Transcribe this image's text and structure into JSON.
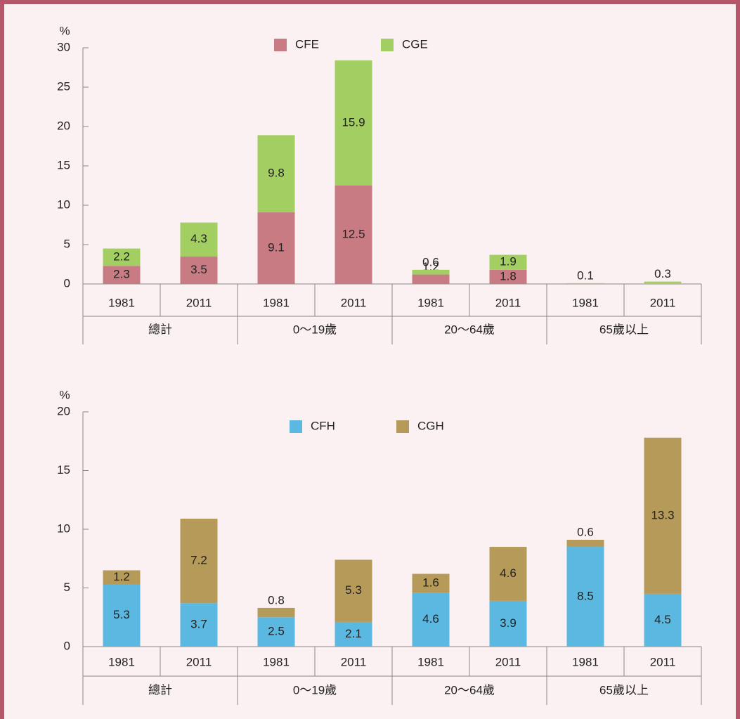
{
  "chart_data": [
    {
      "type": "bar",
      "stacked": true,
      "y_label": "%",
      "categories": [
        "1981",
        "2011",
        "1981",
        "2011",
        "1981",
        "2011",
        "1981",
        "2011"
      ],
      "groups": [
        "總計",
        "0〜19歲",
        "20〜64歲",
        "65歲以上"
      ],
      "series": [
        {
          "name": "CFE",
          "color": "#c97b84",
          "values": [
            2.3,
            3.5,
            9.1,
            12.5,
            1.2,
            1.8,
            null,
            null
          ]
        },
        {
          "name": "CGE",
          "color": "#a3cf62",
          "values": [
            2.2,
            4.3,
            9.8,
            15.9,
            0.6,
            1.9,
            0.1,
            0.3
          ]
        }
      ],
      "ylim": [
        0,
        30
      ],
      "yticks": [
        0,
        5,
        10,
        15,
        20,
        25,
        30
      ]
    },
    {
      "type": "bar",
      "stacked": true,
      "y_label": "%",
      "categories": [
        "1981",
        "2011",
        "1981",
        "2011",
        "1981",
        "2011",
        "1981",
        "2011"
      ],
      "groups": [
        "總計",
        "0〜19歲",
        "20〜64歲",
        "65歲以上"
      ],
      "series": [
        {
          "name": "CFH",
          "color": "#5bb8e0",
          "values": [
            5.3,
            3.7,
            2.5,
            2.1,
            4.6,
            3.9,
            8.5,
            4.5
          ]
        },
        {
          "name": "CGH",
          "color": "#b59a5a",
          "values": [
            1.2,
            7.2,
            0.8,
            5.3,
            1.6,
            4.6,
            0.6,
            13.3
          ]
        }
      ],
      "ylim": [
        0,
        20
      ],
      "yticks": [
        0,
        5,
        10,
        15,
        20
      ]
    }
  ]
}
